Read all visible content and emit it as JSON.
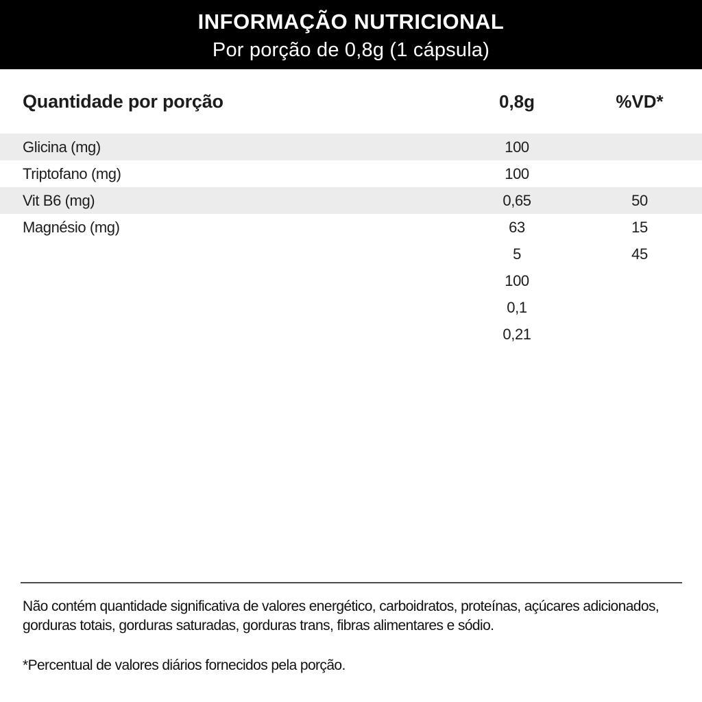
{
  "header": {
    "title": "INFORMAÇÃO NUTRICIONAL",
    "subtitle": "Por porção de 0,8g (1 cápsula)"
  },
  "table": {
    "columns": {
      "label": "Quantidade por porção",
      "amount": "0,8g",
      "dv": "%VD*"
    },
    "rows": [
      {
        "label": "Glicina (mg)",
        "amount": "100",
        "dv": "",
        "striped": true
      },
      {
        "label": "Triptofano (mg)",
        "amount": "100",
        "dv": "",
        "striped": false
      },
      {
        "label": "Vit B6 (mg)",
        "amount": "0,65",
        "dv": "50",
        "striped": true
      },
      {
        "label": "Magnésio (mg)",
        "amount": "63",
        "dv": "15",
        "striped": false
      },
      {
        "label": "",
        "amount": "5",
        "dv": "45",
        "striped": false
      },
      {
        "label": "",
        "amount": "100",
        "dv": "",
        "striped": false
      },
      {
        "label": "",
        "amount": "0,1",
        "dv": "",
        "striped": false
      },
      {
        "label": "",
        "amount": "0,21",
        "dv": "",
        "striped": false
      }
    ]
  },
  "footer": {
    "disclaimer": "Não contém quantidade significativa de valores energético, carboidratos, proteínas, açúcares adicionados, gorduras totais, gorduras saturadas, gorduras trans, fibras alimentares e sódio.",
    "note": "*Percentual de valores diários fornecidos pela porção."
  },
  "colors": {
    "header_bg": "#000000",
    "header_text": "#ffffff",
    "stripe": "#ececec",
    "body_text": "#1c1c1c",
    "divider": "#4a4a4a"
  }
}
